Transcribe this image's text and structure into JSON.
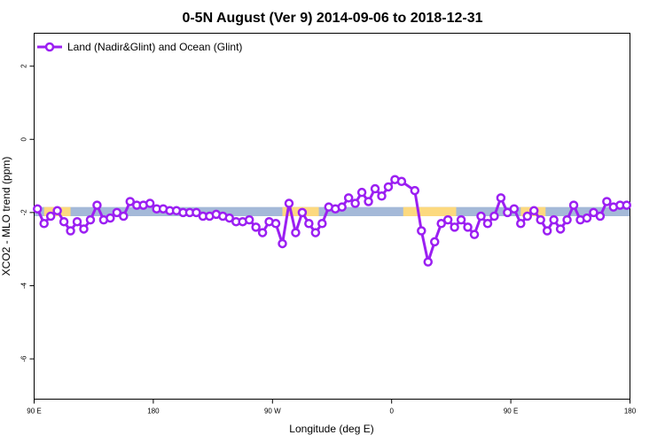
{
  "chart_data": {
    "type": "line",
    "title": "0-5N August (Ver 9)   2014-09-06 to 2018-12-31",
    "xlabel": "Longitude (deg E)",
    "ylabel": "XCO2 - MLO trend (ppm)",
    "xlim": [
      90,
      450
    ],
    "ylim": [
      -7.1,
      2.9
    ],
    "x_ticks": [
      {
        "value": 90,
        "label": "90 E"
      },
      {
        "value": 162,
        "label": "180"
      },
      {
        "value": 234,
        "label": "90 W"
      },
      {
        "value": 306,
        "label": "0"
      },
      {
        "value": 378,
        "label": "90 E"
      },
      {
        "value": 450,
        "label": "180"
      }
    ],
    "y_ticks": [
      {
        "value": 2,
        "label": "2"
      },
      {
        "value": 0,
        "label": "0"
      },
      {
        "value": -2,
        "label": "-2"
      },
      {
        "value": -4,
        "label": "-4"
      },
      {
        "value": -6,
        "label": "-6"
      }
    ],
    "background_band": {
      "y_range": [
        -2.1,
        -1.85
      ],
      "ocean_color": "#a4b9d8",
      "land_color": "#fcd97f",
      "land_segments": [
        [
          96,
          112
        ],
        [
          240,
          262
        ],
        [
          313,
          345
        ],
        [
          384,
          399
        ]
      ]
    },
    "legend": {
      "position": "top-left",
      "entry": "Land (Nadir&Glint) and Ocean (Glint)"
    },
    "series": [
      {
        "name": "Land (Nadir&Glint) and Ocean (Glint)",
        "color": "#9b1ff2",
        "x": [
          92,
          96,
          100,
          104,
          108,
          112,
          116,
          120,
          124,
          128,
          132,
          136,
          140,
          144,
          148,
          152,
          156,
          160,
          164,
          168,
          172,
          176,
          180,
          184,
          188,
          192,
          196,
          200,
          204,
          208,
          212,
          216,
          220,
          224,
          228,
          232,
          236,
          240,
          244,
          248,
          252,
          256,
          260,
          264,
          268,
          272,
          276,
          280,
          284,
          288,
          292,
          296,
          300,
          304,
          308,
          312,
          320,
          324,
          328,
          332,
          336,
          340,
          344,
          348,
          352,
          356,
          360,
          364,
          368,
          372,
          376,
          380,
          384,
          388,
          392,
          396,
          400,
          404,
          408,
          412,
          416,
          420,
          424,
          428,
          432,
          436,
          440,
          444,
          448
        ],
        "values": [
          -1.9,
          -2.3,
          -2.1,
          -1.95,
          -2.25,
          -2.5,
          -2.25,
          -2.45,
          -2.2,
          -1.8,
          -2.2,
          -2.15,
          -2.0,
          -2.1,
          -1.7,
          -1.8,
          -1.8,
          -1.75,
          -1.9,
          -1.9,
          -1.95,
          -1.95,
          -2.0,
          -2.0,
          -2.0,
          -2.1,
          -2.1,
          -2.05,
          -2.1,
          -2.15,
          -2.25,
          -2.25,
          -2.2,
          -2.4,
          -2.55,
          -2.25,
          -2.3,
          -2.85,
          -1.75,
          -2.55,
          -2.0,
          -2.3,
          -2.55,
          -2.3,
          -1.85,
          -1.9,
          -1.85,
          -1.6,
          -1.75,
          -1.45,
          -1.7,
          -1.35,
          -1.55,
          -1.3,
          -1.1,
          -1.15,
          -1.4,
          -2.5,
          -3.35,
          -2.8,
          -2.3,
          -2.2,
          -2.4,
          -2.2,
          -2.4,
          -2.6,
          -2.1,
          -2.3,
          -2.1,
          -1.6,
          -2.0,
          -1.9,
          -2.3,
          -2.1,
          -1.95,
          -2.2,
          -2.5,
          -2.2,
          -2.45,
          -2.2,
          -1.8,
          -2.2,
          -2.15,
          -2.0,
          -2.1,
          -1.7,
          -1.85,
          -1.8,
          -1.8
        ]
      }
    ]
  }
}
